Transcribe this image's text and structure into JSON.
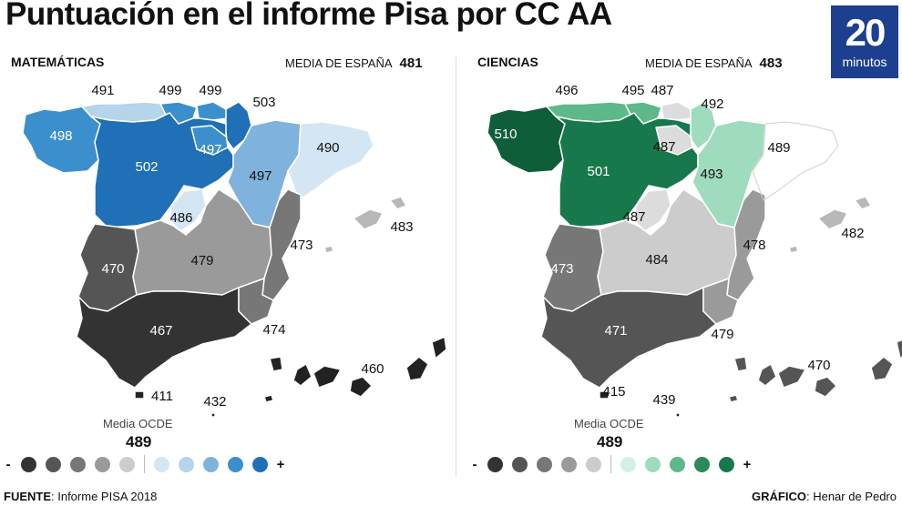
{
  "title": "Puntuación en el informe Pisa por CC AA",
  "logo": {
    "number": "20",
    "word": "minutos"
  },
  "math": {
    "heading": "MATEMÁTICAS",
    "media_label": "MEDIA DE ESPAÑA",
    "media_value": "481",
    "regions": [
      {
        "name": "Galicia",
        "value": "498",
        "color": "#3c8fcd"
      },
      {
        "name": "Asturias",
        "value": "491",
        "color": "#b6d4ea"
      },
      {
        "name": "Cantabria",
        "value": "499",
        "color": "#3c8fcd"
      },
      {
        "name": "País Vasco",
        "value": "499",
        "color": "#3c8fcd"
      },
      {
        "name": "Navarra",
        "value": "503",
        "color": "#1f70b7"
      },
      {
        "name": "La Rioja",
        "value": "497",
        "color": "#3c8fcd"
      },
      {
        "name": "Castilla y León",
        "value": "502",
        "color": "#1f70b7"
      },
      {
        "name": "Aragón",
        "value": "497",
        "color": "#7fb3de"
      },
      {
        "name": "Cataluña",
        "value": "490",
        "color": "#d4e6f4"
      },
      {
        "name": "Madrid",
        "value": "486",
        "color": "#d4e6f4"
      },
      {
        "name": "Extremadura",
        "value": "470",
        "color": "#555555"
      },
      {
        "name": "Castilla-La Mancha",
        "value": "479",
        "color": "#9a9a9a"
      },
      {
        "name": "Comunidad Valenciana",
        "value": "473",
        "color": "#777777"
      },
      {
        "name": "Islas Baleares",
        "value": "483",
        "color": "#b8b8b8"
      },
      {
        "name": "Andalucía",
        "value": "467",
        "color": "#333333"
      },
      {
        "name": "Murcia",
        "value": "474",
        "color": "#777777"
      },
      {
        "name": "Canarias",
        "value": "460",
        "color": "#222222"
      },
      {
        "name": "Ceuta",
        "value": "411",
        "color": "#222222"
      },
      {
        "name": "Melilla",
        "value": "432",
        "color": "#222222"
      }
    ],
    "ocde_label": "Media OCDE",
    "ocde_value": "489",
    "scale": {
      "minus": "-",
      "plus": "+",
      "grays": [
        "#333333",
        "#555555",
        "#777777",
        "#9a9a9a",
        "#cccccc"
      ],
      "colors": [
        "#d4e6f4",
        "#b6d4ea",
        "#7fb3de",
        "#3c8fcd",
        "#1f70b7"
      ]
    }
  },
  "science": {
    "heading": "CIENCIAS",
    "media_label": "MEDIA DE ESPAÑA",
    "media_value": "483",
    "regions": [
      {
        "name": "Galicia",
        "value": "510",
        "color": "#0f5e3a"
      },
      {
        "name": "Asturias",
        "value": "496",
        "color": "#5db88a"
      },
      {
        "name": "Cantabria",
        "value": "495",
        "color": "#5db88a"
      },
      {
        "name": "País Vasco",
        "value": "487",
        "color": "#dcdcdc"
      },
      {
        "name": "Navarra",
        "value": "492",
        "color": "#9fdbbd"
      },
      {
        "name": "La Rioja",
        "value": "487",
        "color": "#dcdcdc"
      },
      {
        "name": "Castilla y León",
        "value": "501",
        "color": "#17794b"
      },
      {
        "name": "Aragón",
        "value": "493",
        "color": "#9fdbbd"
      },
      {
        "name": "Cataluña",
        "value": "489",
        "color": "#ffffff"
      },
      {
        "name": "Madrid",
        "value": "487",
        "color": "#dcdcdc"
      },
      {
        "name": "Extremadura",
        "value": "473",
        "color": "#777777"
      },
      {
        "name": "Castilla-La Mancha",
        "value": "484",
        "color": "#cccccc"
      },
      {
        "name": "Comunidad Valenciana",
        "value": "478",
        "color": "#9a9a9a"
      },
      {
        "name": "Islas Baleares",
        "value": "482",
        "color": "#b8b8b8"
      },
      {
        "name": "Andalucía",
        "value": "471",
        "color": "#555555"
      },
      {
        "name": "Murcia",
        "value": "479",
        "color": "#9a9a9a"
      },
      {
        "name": "Canarias",
        "value": "470",
        "color": "#555555"
      },
      {
        "name": "Ceuta",
        "value": "415",
        "color": "#222222"
      },
      {
        "name": "Melilla",
        "value": "439",
        "color": "#222222"
      }
    ],
    "ocde_label": "Media OCDE",
    "ocde_value": "489",
    "scale": {
      "minus": "-",
      "plus": "+",
      "grays": [
        "#333333",
        "#555555",
        "#777777",
        "#9a9a9a",
        "#cccccc"
      ],
      "colors": [
        "#d4f0e2",
        "#9fdbbd",
        "#5db88a",
        "#2a8a5a",
        "#17794b"
      ]
    }
  },
  "footer": {
    "source_label": "FUENTE",
    "source_text": ": Informe PISA 2018",
    "graphic_label": "GRÁFICO",
    "graphic_text": ": Henar de Pedro"
  }
}
